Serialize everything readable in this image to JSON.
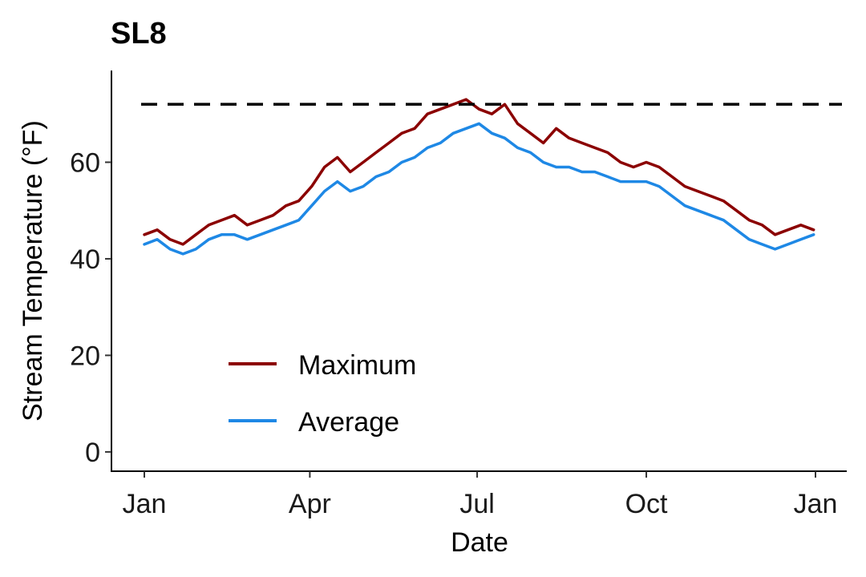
{
  "chart_data": {
    "type": "line",
    "title": "SL8",
    "xlabel": "Date",
    "ylabel": "Stream Temperature (°F)",
    "xlim": [
      1,
      366
    ],
    "ylim": [
      -4,
      79
    ],
    "x_ticks": [
      {
        "value": 1,
        "label": "Jan"
      },
      {
        "value": 91,
        "label": "Apr"
      },
      {
        "value": 182,
        "label": "Jul"
      },
      {
        "value": 274,
        "label": "Oct"
      },
      {
        "value": 366,
        "label": "Jan"
      }
    ],
    "y_ticks": [
      {
        "value": 0,
        "label": "0"
      },
      {
        "value": 20,
        "label": "20"
      },
      {
        "value": 40,
        "label": "40"
      },
      {
        "value": 60,
        "label": "60"
      }
    ],
    "reference_line": {
      "y": 72,
      "style": "dashed",
      "color": "#000000"
    },
    "legend": {
      "position": "bottom-left",
      "entries": [
        "Maximum",
        "Average"
      ]
    },
    "grid": false,
    "series": [
      {
        "name": "Maximum",
        "color": "#8B0000",
        "x": [
          1,
          8,
          15,
          22,
          29,
          36,
          43,
          50,
          57,
          64,
          71,
          78,
          85,
          92,
          99,
          106,
          113,
          120,
          127,
          134,
          141,
          148,
          155,
          162,
          169,
          176,
          183,
          190,
          197,
          204,
          211,
          218,
          225,
          232,
          239,
          246,
          253,
          260,
          267,
          274,
          281,
          288,
          295,
          302,
          309,
          316,
          323,
          330,
          337,
          344,
          351,
          358,
          365
        ],
        "y": [
          45,
          46,
          44,
          43,
          45,
          47,
          48,
          49,
          47,
          48,
          49,
          51,
          52,
          55,
          59,
          61,
          58,
          60,
          62,
          64,
          66,
          67,
          70,
          71,
          72,
          73,
          71,
          70,
          72,
          68,
          66,
          64,
          67,
          65,
          64,
          63,
          62,
          60,
          59,
          60,
          59,
          57,
          55,
          54,
          53,
          52,
          50,
          48,
          47,
          45,
          46,
          47,
          46
        ]
      },
      {
        "name": "Average",
        "color": "#1E88E5",
        "x": [
          1,
          8,
          15,
          22,
          29,
          36,
          43,
          50,
          57,
          64,
          71,
          78,
          85,
          92,
          99,
          106,
          113,
          120,
          127,
          134,
          141,
          148,
          155,
          162,
          169,
          176,
          183,
          190,
          197,
          204,
          211,
          218,
          225,
          232,
          239,
          246,
          253,
          260,
          267,
          274,
          281,
          288,
          295,
          302,
          309,
          316,
          323,
          330,
          337,
          344,
          351,
          358,
          365
        ],
        "y": [
          43,
          44,
          42,
          41,
          42,
          44,
          45,
          45,
          44,
          45,
          46,
          47,
          48,
          51,
          54,
          56,
          54,
          55,
          57,
          58,
          60,
          61,
          63,
          64,
          66,
          67,
          68,
          66,
          65,
          63,
          62,
          60,
          59,
          59,
          58,
          58,
          57,
          56,
          56,
          56,
          55,
          53,
          51,
          50,
          49,
          48,
          46,
          44,
          43,
          42,
          43,
          44,
          45
        ]
      }
    ]
  }
}
